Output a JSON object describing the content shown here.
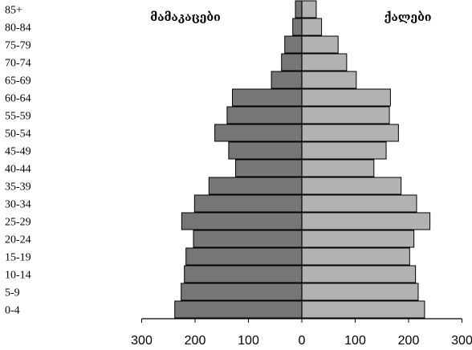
{
  "chart_data": {
    "type": "bar",
    "orientation": "horizontal",
    "subtype": "population-pyramid",
    "categories": [
      "0-4",
      "5-9",
      "10-14",
      "15-19",
      "20-24",
      "25-29",
      "30-34",
      "35-39",
      "40-44",
      "45-49",
      "50-54",
      "55-59",
      "60-64",
      "65-69",
      "70-74",
      "75-79",
      "80-84",
      "85+"
    ],
    "series": [
      {
        "name": "მამაკაცები",
        "side": "left",
        "color": "#767676",
        "values": [
          238,
          226,
          220,
          217,
          203,
          225,
          201,
          174,
          124,
          137,
          163,
          140,
          130,
          57,
          38,
          32,
          17,
          12
        ]
      },
      {
        "name": "ქალები",
        "side": "right",
        "color": "#b2b2b2",
        "values": [
          230,
          218,
          213,
          202,
          210,
          240,
          215,
          186,
          135,
          158,
          181,
          164,
          166,
          102,
          84,
          68,
          37,
          27
        ]
      }
    ],
    "xlim": [
      -300,
      300
    ],
    "xticks": [
      -300,
      -200,
      -100,
      0,
      100,
      200,
      300
    ],
    "xtick_labels": [
      "300",
      "200",
      "100",
      "0",
      "100",
      "200",
      "300"
    ],
    "grid": false,
    "legend": "none"
  }
}
